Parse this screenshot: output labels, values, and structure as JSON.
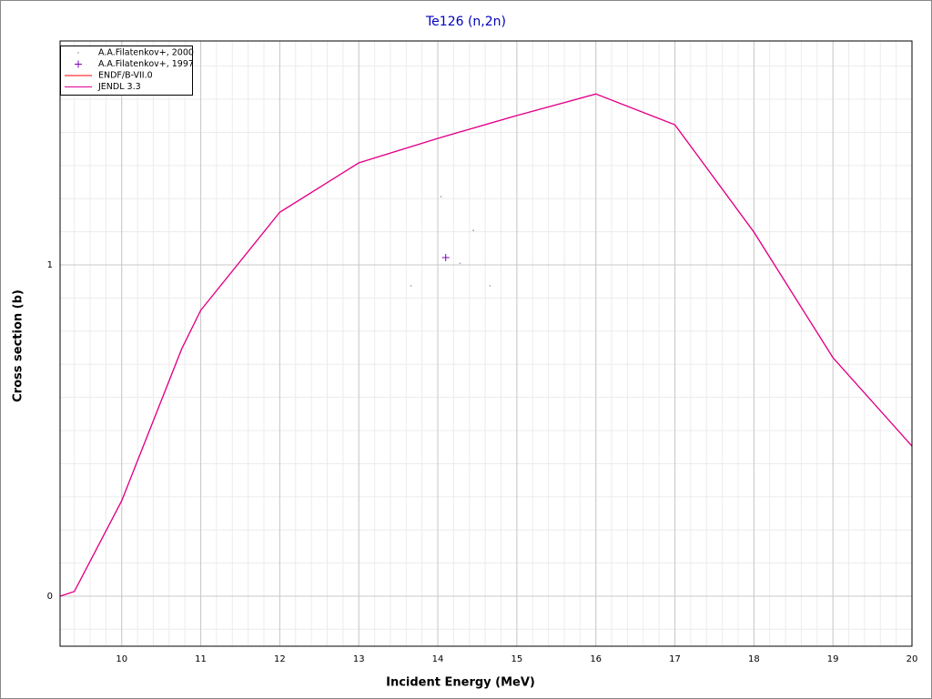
{
  "chart_data": {
    "type": "line",
    "title": "Te126 (n,2n)",
    "x_label": "Incident Energy (MeV)",
    "y_label": "Cross section (b)",
    "xlim": [
      9.22,
      20
    ],
    "ylim": [
      -0.151,
      1.676
    ],
    "xticks": [
      10,
      11,
      12,
      13,
      14,
      15,
      16,
      17,
      18,
      19,
      20
    ],
    "yticks": [
      0,
      1
    ],
    "grid": true,
    "legend": "upper left",
    "series": [
      {
        "name": "A.A.Filatenkov+, 2000",
        "type": "scatter",
        "marker": "dot",
        "color": "#9aa8b8",
        "x": [
          14.04,
          14.45,
          14.28,
          13.66,
          14.66
        ],
        "values": [
          1.206,
          1.104,
          1.005,
          0.937,
          0.937
        ]
      },
      {
        "name": "A.A.Filatenkov+, 1997",
        "type": "scatter",
        "marker": "plus",
        "color": "#8000c0",
        "x": [
          14.1
        ],
        "values": [
          1.022
        ]
      },
      {
        "name": "ENDF/B-VII.0",
        "type": "line",
        "color": "#ff0000",
        "x": [
          9.22,
          9.4,
          10,
          10.76,
          11,
          12,
          13,
          14,
          15,
          16,
          17,
          18,
          19,
          20
        ],
        "values": [
          0,
          0.014,
          0.288,
          0.747,
          0.863,
          1.159,
          1.308,
          1.382,
          1.451,
          1.516,
          1.423,
          1.099,
          0.72,
          0.453
        ]
      },
      {
        "name": "JENDL 3.3",
        "type": "line",
        "color": "#e0009a",
        "x": [
          9.22,
          9.4,
          10,
          10.76,
          11,
          12,
          13,
          14,
          15,
          16,
          17,
          18,
          19,
          20
        ],
        "values": [
          0,
          0.014,
          0.288,
          0.747,
          0.863,
          1.159,
          1.308,
          1.382,
          1.451,
          1.516,
          1.423,
          1.099,
          0.72,
          0.453
        ]
      }
    ]
  }
}
